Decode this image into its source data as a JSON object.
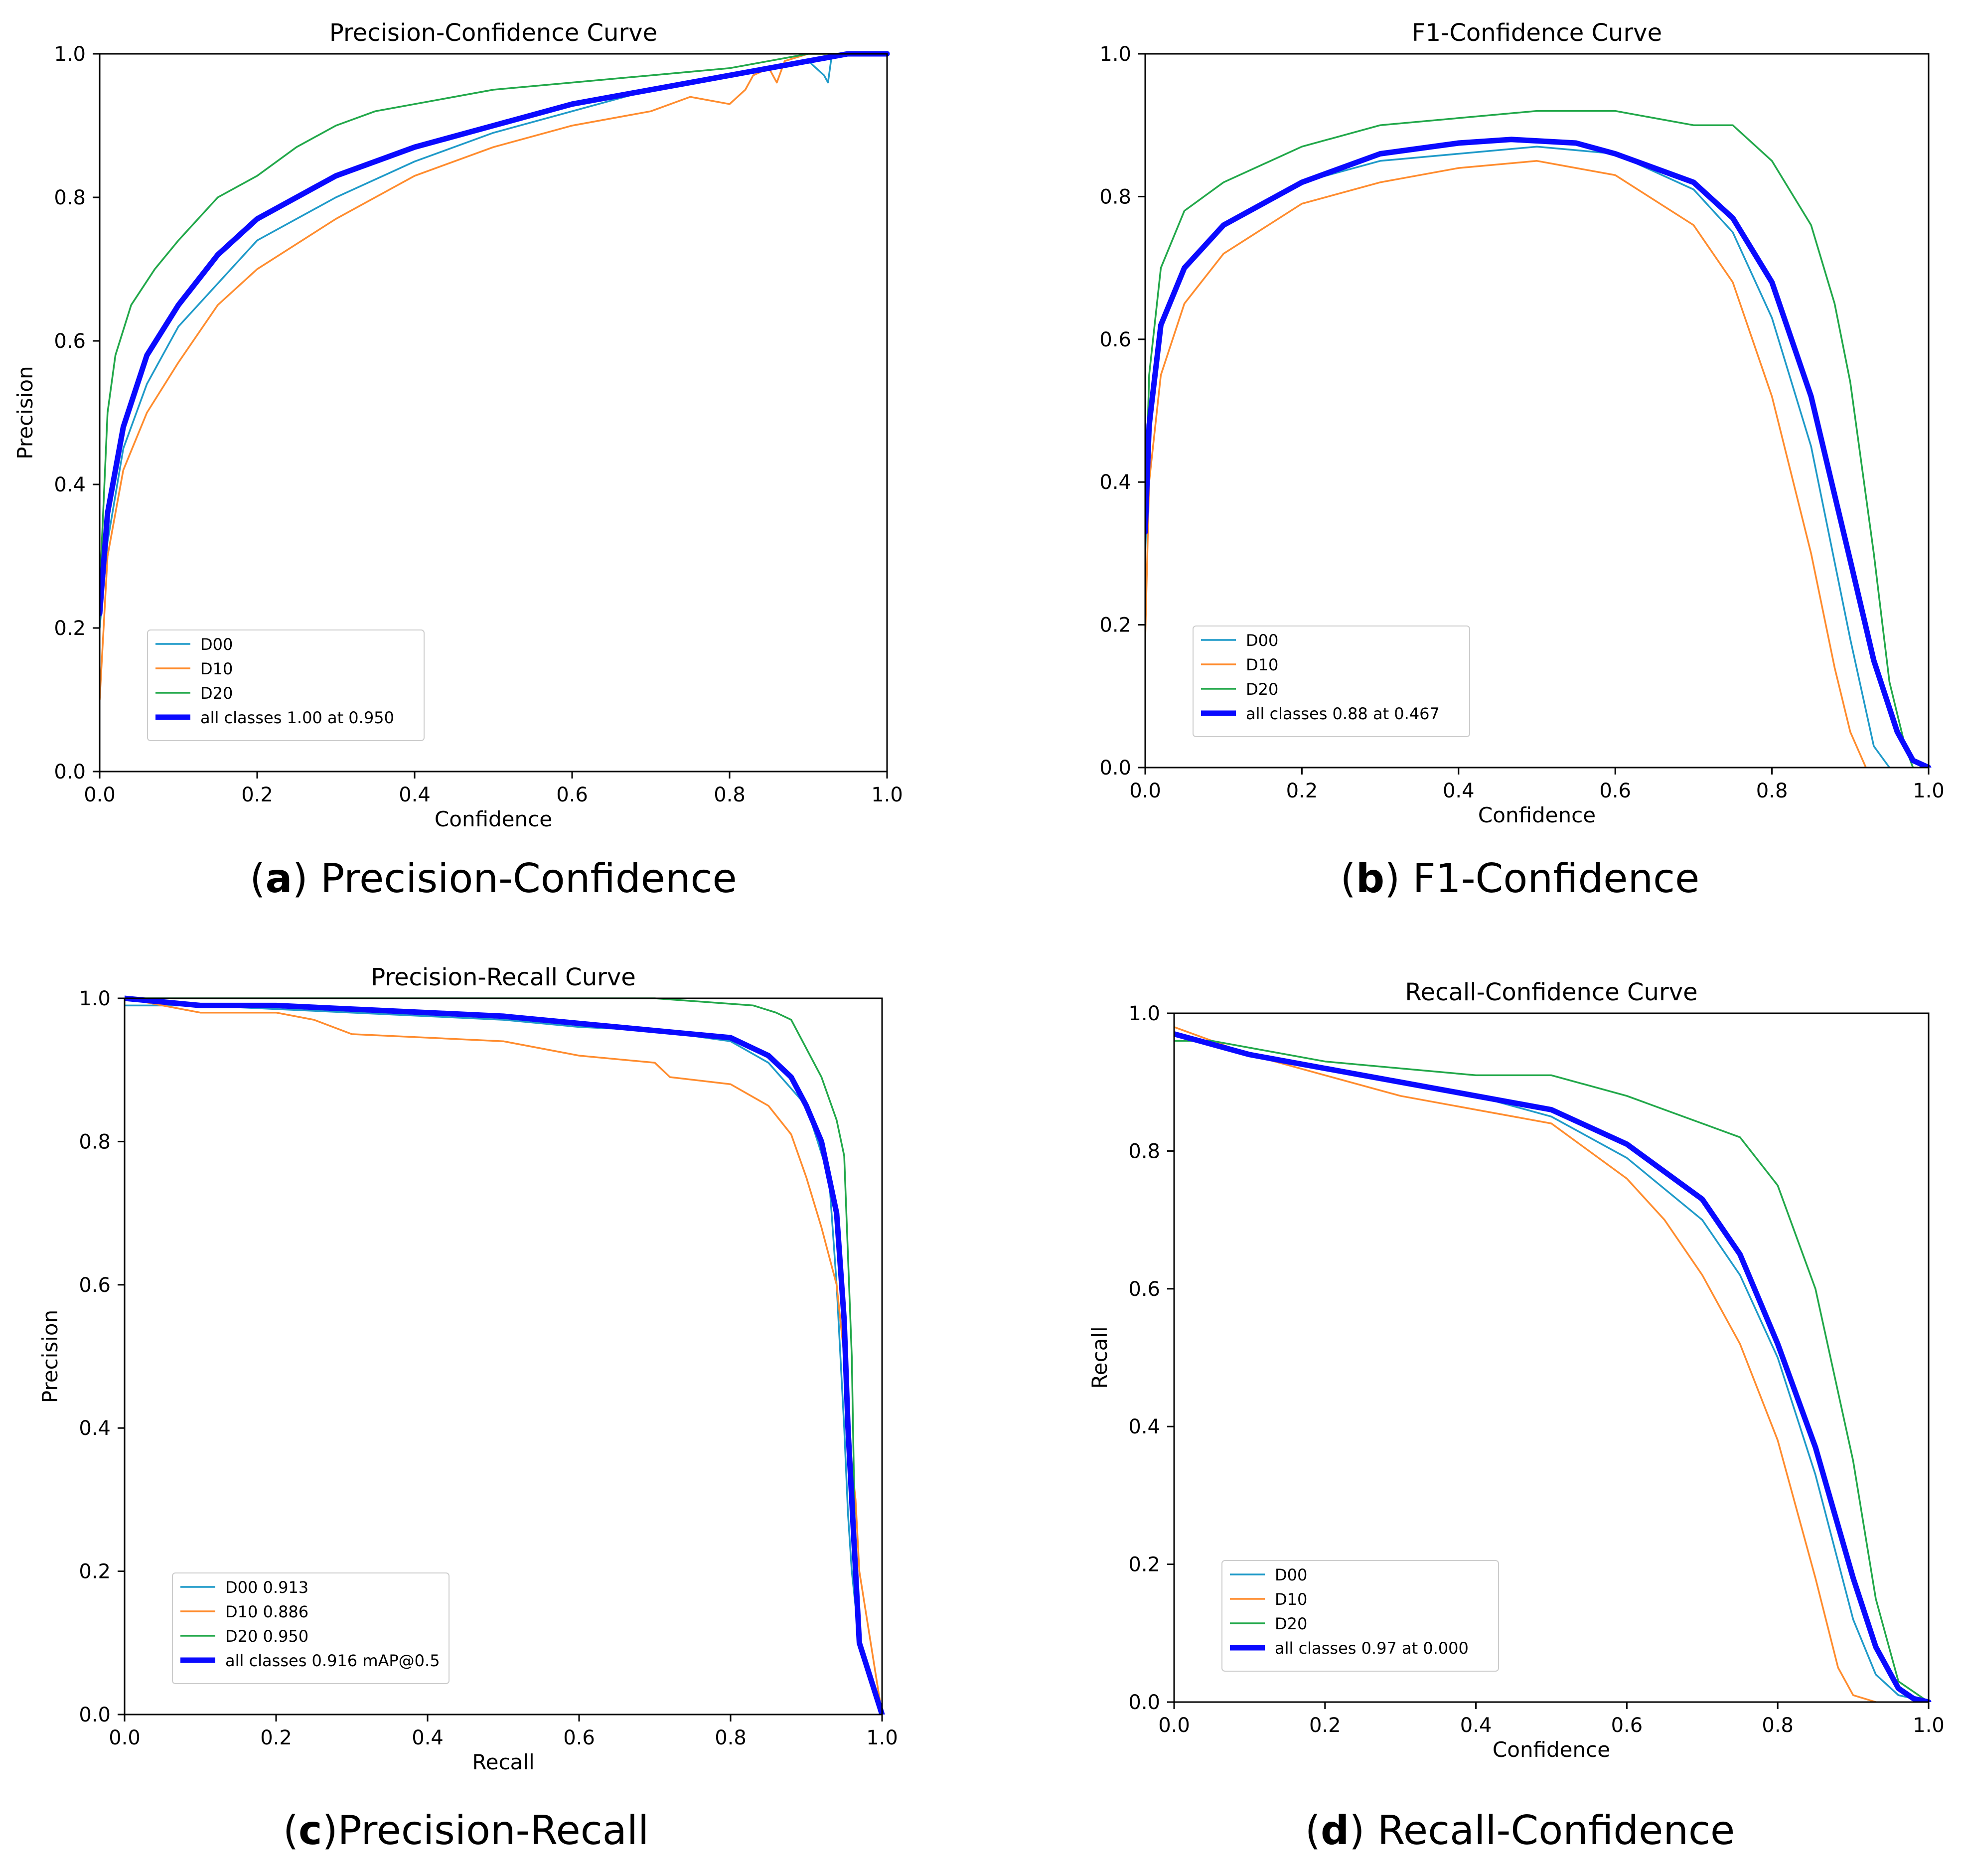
{
  "colors": {
    "D00": "#1f9ac9",
    "D10": "#ff8c2e",
    "D20": "#22a84a",
    "all": "#0a0aff",
    "axis": "#000000",
    "legend_border": "#cccccc"
  },
  "chart_data": [
    {
      "id": "a",
      "type": "line",
      "title": "Precision-Confidence Curve",
      "xlabel": "Confidence",
      "ylabel": "Precision",
      "xlim": [
        0,
        1
      ],
      "ylim": [
        0,
        1
      ],
      "xticks": [
        "0.0",
        "0.2",
        "0.4",
        "0.6",
        "0.8",
        "1.0"
      ],
      "yticks": [
        "0.0",
        "0.2",
        "0.4",
        "0.6",
        "0.8",
        "1.0"
      ],
      "legend_position": "lower-left",
      "caption": {
        "letter": "a",
        "text": " Precision-Confidence"
      },
      "series": [
        {
          "name": "D00",
          "legend": "D00",
          "x": [
            0,
            0.01,
            0.03,
            0.06,
            0.1,
            0.15,
            0.2,
            0.3,
            0.4,
            0.5,
            0.6,
            0.7,
            0.8,
            0.85,
            0.9,
            0.92,
            0.925,
            0.93,
            0.95,
            1.0
          ],
          "y": [
            0.2,
            0.32,
            0.45,
            0.54,
            0.62,
            0.68,
            0.74,
            0.8,
            0.85,
            0.89,
            0.92,
            0.95,
            0.97,
            0.98,
            0.99,
            0.97,
            0.96,
            1.0,
            1.0,
            1.0
          ]
        },
        {
          "name": "D10",
          "legend": "D10",
          "x": [
            0,
            0.01,
            0.03,
            0.06,
            0.1,
            0.15,
            0.2,
            0.3,
            0.4,
            0.5,
            0.6,
            0.7,
            0.75,
            0.8,
            0.82,
            0.83,
            0.85,
            0.86,
            0.87,
            0.9,
            1.0
          ],
          "y": [
            0.1,
            0.3,
            0.42,
            0.5,
            0.57,
            0.65,
            0.7,
            0.77,
            0.83,
            0.87,
            0.9,
            0.92,
            0.94,
            0.93,
            0.95,
            0.97,
            0.98,
            0.96,
            0.99,
            1.0,
            1.0
          ]
        },
        {
          "name": "D20",
          "legend": "D20",
          "x": [
            0,
            0.01,
            0.02,
            0.04,
            0.07,
            0.1,
            0.15,
            0.2,
            0.25,
            0.3,
            0.35,
            0.4,
            0.5,
            0.6,
            0.7,
            0.8,
            0.9,
            1.0
          ],
          "y": [
            0.25,
            0.5,
            0.58,
            0.65,
            0.7,
            0.74,
            0.8,
            0.83,
            0.87,
            0.9,
            0.92,
            0.93,
            0.95,
            0.96,
            0.97,
            0.98,
            1.0,
            1.0
          ]
        },
        {
          "name": "all",
          "legend": "all classes 1.00 at 0.950",
          "x": [
            0,
            0.01,
            0.03,
            0.06,
            0.1,
            0.15,
            0.2,
            0.3,
            0.4,
            0.5,
            0.6,
            0.7,
            0.8,
            0.9,
            0.95,
            1.0
          ],
          "y": [
            0.22,
            0.36,
            0.48,
            0.58,
            0.65,
            0.72,
            0.77,
            0.83,
            0.87,
            0.9,
            0.93,
            0.95,
            0.97,
            0.99,
            1.0,
            1.0
          ]
        }
      ]
    },
    {
      "id": "b",
      "type": "line",
      "title": "F1-Confidence Curve",
      "xlabel": "Confidence",
      "ylabel": "",
      "xlim": [
        0,
        1
      ],
      "ylim": [
        0,
        1
      ],
      "xticks": [
        "0.0",
        "0.2",
        "0.4",
        "0.6",
        "0.8",
        "1.0"
      ],
      "yticks": [
        "0.0",
        "0.2",
        "0.4",
        "0.6",
        "0.8",
        "1.0"
      ],
      "legend_position": "lower-left",
      "caption": {
        "letter": "b",
        "text": " F1-Confidence"
      },
      "series": [
        {
          "name": "D00",
          "legend": "D00",
          "x": [
            0,
            0.005,
            0.02,
            0.05,
            0.1,
            0.2,
            0.3,
            0.4,
            0.5,
            0.6,
            0.7,
            0.75,
            0.8,
            0.85,
            0.9,
            0.93,
            0.95
          ],
          "y": [
            0.3,
            0.45,
            0.62,
            0.7,
            0.76,
            0.82,
            0.85,
            0.86,
            0.87,
            0.86,
            0.81,
            0.75,
            0.63,
            0.45,
            0.18,
            0.03,
            0.0
          ]
        },
        {
          "name": "D10",
          "legend": "D10",
          "x": [
            0,
            0.005,
            0.02,
            0.05,
            0.1,
            0.2,
            0.3,
            0.4,
            0.5,
            0.6,
            0.7,
            0.75,
            0.8,
            0.85,
            0.88,
            0.9,
            0.92
          ],
          "y": [
            0.18,
            0.4,
            0.55,
            0.65,
            0.72,
            0.79,
            0.82,
            0.84,
            0.85,
            0.83,
            0.76,
            0.68,
            0.52,
            0.3,
            0.14,
            0.05,
            0.0
          ]
        },
        {
          "name": "D20",
          "legend": "D20",
          "x": [
            0,
            0.005,
            0.02,
            0.05,
            0.1,
            0.2,
            0.3,
            0.4,
            0.5,
            0.6,
            0.7,
            0.75,
            0.8,
            0.85,
            0.88,
            0.9,
            0.93,
            0.95,
            0.97,
            0.98
          ],
          "y": [
            0.35,
            0.55,
            0.7,
            0.78,
            0.82,
            0.87,
            0.9,
            0.91,
            0.92,
            0.92,
            0.9,
            0.9,
            0.85,
            0.76,
            0.65,
            0.54,
            0.3,
            0.12,
            0.03,
            0.0
          ]
        },
        {
          "name": "all",
          "legend": "all classes 0.88 at 0.467",
          "x": [
            0,
            0.005,
            0.02,
            0.05,
            0.1,
            0.2,
            0.3,
            0.4,
            0.467,
            0.55,
            0.6,
            0.7,
            0.75,
            0.8,
            0.85,
            0.9,
            0.93,
            0.96,
            0.98,
            1.0
          ],
          "y": [
            0.33,
            0.48,
            0.62,
            0.7,
            0.76,
            0.82,
            0.86,
            0.875,
            0.88,
            0.875,
            0.86,
            0.82,
            0.77,
            0.68,
            0.52,
            0.29,
            0.15,
            0.05,
            0.01,
            0.0
          ]
        }
      ]
    },
    {
      "id": "c",
      "type": "line",
      "title": "Precision-Recall Curve",
      "xlabel": "Recall",
      "ylabel": "Precision",
      "xlim": [
        0,
        1
      ],
      "ylim": [
        0,
        1
      ],
      "xticks": [
        "0.0",
        "0.2",
        "0.4",
        "0.6",
        "0.8",
        "1.0"
      ],
      "yticks": [
        "0.0",
        "0.2",
        "0.4",
        "0.6",
        "0.8",
        "1.0"
      ],
      "legend_position": "lower-left",
      "caption": {
        "letter": "c",
        "text": "Precision-Recall"
      },
      "series": [
        {
          "name": "D00",
          "legend": "D00 0.913",
          "x": [
            0,
            0.1,
            0.2,
            0.3,
            0.4,
            0.5,
            0.6,
            0.7,
            0.8,
            0.85,
            0.9,
            0.93,
            0.94,
            0.95,
            0.955,
            0.96,
            0.97,
            1.0
          ],
          "y": [
            0.99,
            0.99,
            0.985,
            0.98,
            0.975,
            0.97,
            0.96,
            0.955,
            0.94,
            0.91,
            0.85,
            0.75,
            0.6,
            0.4,
            0.28,
            0.2,
            0.1,
            0.0
          ]
        },
        {
          "name": "D10",
          "legend": "D10 0.886",
          "x": [
            0,
            0.1,
            0.2,
            0.25,
            0.3,
            0.4,
            0.5,
            0.6,
            0.7,
            0.72,
            0.8,
            0.85,
            0.88,
            0.9,
            0.92,
            0.94,
            0.95,
            0.96,
            0.965,
            0.97,
            1.0
          ],
          "y": [
            1.0,
            0.98,
            0.98,
            0.97,
            0.95,
            0.945,
            0.94,
            0.92,
            0.91,
            0.89,
            0.88,
            0.85,
            0.81,
            0.75,
            0.68,
            0.6,
            0.5,
            0.35,
            0.3,
            0.2,
            0.0
          ]
        },
        {
          "name": "D20",
          "legend": "D20 0.950",
          "x": [
            0,
            0.3,
            0.5,
            0.6,
            0.7,
            0.83,
            0.86,
            0.88,
            0.9,
            0.92,
            0.94,
            0.95,
            0.96,
            0.965,
            0.97,
            1.0
          ],
          "y": [
            1.0,
            1.0,
            1.0,
            1.0,
            1.0,
            0.99,
            0.98,
            0.97,
            0.93,
            0.89,
            0.83,
            0.78,
            0.5,
            0.2,
            0.1,
            0.0
          ]
        },
        {
          "name": "all",
          "legend": "all classes 0.916 mAP@0.5",
          "x": [
            0,
            0.1,
            0.2,
            0.3,
            0.4,
            0.5,
            0.6,
            0.7,
            0.8,
            0.85,
            0.88,
            0.9,
            0.92,
            0.93,
            0.94,
            0.95,
            0.955,
            0.96,
            0.965,
            0.97,
            1.0
          ],
          "y": [
            1.0,
            0.99,
            0.99,
            0.985,
            0.98,
            0.975,
            0.965,
            0.955,
            0.945,
            0.92,
            0.89,
            0.85,
            0.8,
            0.75,
            0.7,
            0.55,
            0.4,
            0.3,
            0.2,
            0.1,
            0.0
          ]
        }
      ]
    },
    {
      "id": "d",
      "type": "line",
      "title": "Recall-Confidence Curve",
      "xlabel": "Confidence",
      "ylabel": "Recall",
      "xlim": [
        0,
        1
      ],
      "ylim": [
        0,
        1
      ],
      "xticks": [
        "0.0",
        "0.2",
        "0.4",
        "0.6",
        "0.8",
        "1.0"
      ],
      "yticks": [
        "0.0",
        "0.2",
        "0.4",
        "0.6",
        "0.8",
        "1.0"
      ],
      "legend_position": "lower-left",
      "caption": {
        "letter": "d",
        "text": " Recall-Confidence"
      },
      "series": [
        {
          "name": "D00",
          "legend": "D00",
          "x": [
            0,
            0.1,
            0.2,
            0.3,
            0.4,
            0.5,
            0.6,
            0.7,
            0.75,
            0.8,
            0.85,
            0.9,
            0.93,
            0.96,
            1.0
          ],
          "y": [
            0.97,
            0.94,
            0.92,
            0.9,
            0.88,
            0.85,
            0.79,
            0.7,
            0.62,
            0.5,
            0.33,
            0.12,
            0.04,
            0.01,
            0.0
          ]
        },
        {
          "name": "D10",
          "legend": "D10",
          "x": [
            0,
            0.1,
            0.2,
            0.3,
            0.4,
            0.5,
            0.6,
            0.65,
            0.7,
            0.75,
            0.8,
            0.85,
            0.88,
            0.9,
            0.93
          ],
          "y": [
            0.98,
            0.94,
            0.91,
            0.88,
            0.86,
            0.84,
            0.76,
            0.7,
            0.62,
            0.52,
            0.38,
            0.18,
            0.05,
            0.01,
            0.0
          ]
        },
        {
          "name": "D20",
          "legend": "D20",
          "x": [
            0,
            0.05,
            0.1,
            0.2,
            0.3,
            0.4,
            0.5,
            0.6,
            0.65,
            0.7,
            0.75,
            0.8,
            0.85,
            0.9,
            0.93,
            0.96,
            1.0
          ],
          "y": [
            0.96,
            0.96,
            0.95,
            0.93,
            0.92,
            0.91,
            0.91,
            0.88,
            0.86,
            0.84,
            0.82,
            0.75,
            0.6,
            0.35,
            0.15,
            0.03,
            0.0
          ]
        },
        {
          "name": "all",
          "legend": "all classes 0.97 at 0.000",
          "x": [
            0,
            0.1,
            0.2,
            0.3,
            0.4,
            0.5,
            0.6,
            0.7,
            0.75,
            0.8,
            0.85,
            0.9,
            0.93,
            0.96,
            0.98,
            1.0
          ],
          "y": [
            0.97,
            0.94,
            0.92,
            0.9,
            0.88,
            0.86,
            0.81,
            0.73,
            0.65,
            0.52,
            0.37,
            0.18,
            0.08,
            0.02,
            0.005,
            0.0
          ]
        }
      ]
    }
  ]
}
